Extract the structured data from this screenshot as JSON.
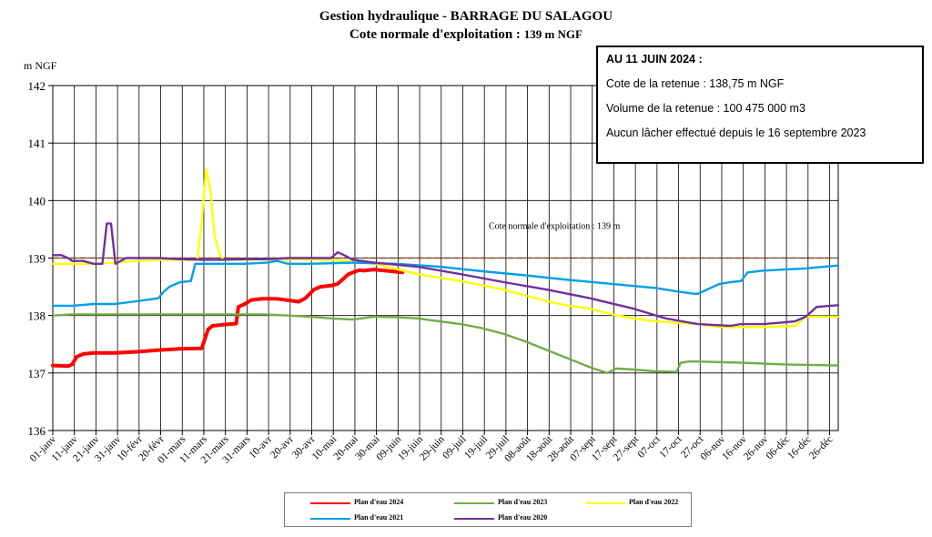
{
  "title_line1": "Gestion hydraulique - BARRAGE DU SALAGOU",
  "title_line2_main": "Cote normale d'exploitation : ",
  "title_line2_value": "139 m NGF",
  "info": {
    "heading": "AU 11 JUIN 2024 :",
    "lines": [
      "Cote de la retenue : 138,75 m NGF",
      "Volume de la retenue : 100 475 000 m3",
      "Aucun lâcher effectué depuis le 16 septembre 2023"
    ]
  },
  "colors": {
    "s2024": "#ff0000",
    "s2023": "#70ad47",
    "s2022": "#ffff00",
    "s2021": "#00a0e9",
    "s2020": "#7030a0",
    "reference": "#8b4513"
  },
  "chart_data": {
    "type": "line",
    "title": "Gestion hydraulique - BARRAGE DU SALAGOU",
    "subtitle": "Cote normale d'exploitation : 139 m NGF",
    "ylabel": "m NGF",
    "xlabel": "",
    "ylim": [
      136,
      142
    ],
    "yticks": [
      136,
      137,
      138,
      139,
      140,
      141,
      142
    ],
    "xlim": [
      1,
      365
    ],
    "xtick_labels": [
      "01-janv",
      "11-janv",
      "21-janv",
      "31-janv",
      "10-févr",
      "20-févr",
      "01-mars",
      "11-mars",
      "21-mars",
      "31-mars",
      "10-avr",
      "20-avr",
      "30-avr",
      "10-mai",
      "20-mai",
      "30-mai",
      "09-juin",
      "19-juin",
      "29-juin",
      "09-juil",
      "19-juil",
      "29-juil",
      "08-août",
      "18-août",
      "28-août",
      "07-sept",
      "17-sept",
      "27-sept",
      "07-oct",
      "17-oct",
      "27-oct",
      "06-nov",
      "16-nov",
      "26-nov",
      "06-déc",
      "16-déc",
      "26-déc"
    ],
    "grid": true,
    "reference_line": {
      "value": 139,
      "label": "Cote normale d'exploitation : 139 m"
    },
    "legend_position": "bottom",
    "series": [
      {
        "name": "Plan d'eau 2024",
        "color_key": "s2024",
        "x": [
          1,
          8,
          10,
          12,
          15,
          20,
          30,
          40,
          50,
          60,
          70,
          73,
          75,
          80,
          86,
          87,
          90,
          93,
          98,
          105,
          115,
          118,
          122,
          125,
          130,
          133,
          138,
          143,
          145,
          150,
          155,
          163
        ],
        "y": [
          137.13,
          137.12,
          137.15,
          137.28,
          137.33,
          137.35,
          137.35,
          137.37,
          137.4,
          137.42,
          137.43,
          137.76,
          137.82,
          137.84,
          137.86,
          138.15,
          138.2,
          138.27,
          138.29,
          138.29,
          138.24,
          138.3,
          138.45,
          138.5,
          138.52,
          138.55,
          138.72,
          138.79,
          138.78,
          138.8,
          138.78,
          138.75
        ]
      },
      {
        "name": "Plan d'eau 2023",
        "color_key": "s2023",
        "x": [
          1,
          10,
          30,
          50,
          70,
          90,
          100,
          110,
          120,
          130,
          140,
          150,
          160,
          170,
          180,
          190,
          200,
          210,
          220,
          230,
          240,
          250,
          258,
          262,
          270,
          280,
          290,
          292,
          296,
          300,
          320,
          340,
          365
        ],
        "y": [
          138.0,
          138.02,
          138.02,
          138.02,
          138.02,
          138.02,
          138.02,
          138.0,
          137.98,
          137.95,
          137.93,
          137.98,
          137.97,
          137.95,
          137.9,
          137.85,
          137.78,
          137.68,
          137.55,
          137.4,
          137.25,
          137.1,
          137.0,
          137.08,
          137.06,
          137.03,
          137.02,
          137.18,
          137.2,
          137.2,
          137.18,
          137.15,
          137.13
        ]
      },
      {
        "name": "Plan d'eau 2022",
        "color_key": "s2022",
        "x": [
          1,
          10,
          20,
          30,
          40,
          50,
          60,
          68,
          70,
          72,
          74,
          76,
          78,
          80,
          90,
          110,
          130,
          150,
          170,
          190,
          210,
          230,
          240,
          250,
          260,
          270,
          280,
          300,
          310,
          330,
          345,
          350,
          365
        ],
        "y": [
          138.9,
          138.9,
          138.9,
          138.92,
          138.95,
          138.97,
          138.97,
          138.97,
          139.6,
          140.55,
          140.2,
          139.4,
          139.1,
          138.97,
          138.97,
          138.98,
          138.97,
          138.9,
          138.72,
          138.6,
          138.45,
          138.25,
          138.17,
          138.12,
          138.02,
          137.95,
          137.9,
          137.85,
          137.8,
          137.8,
          137.82,
          137.98,
          137.98
        ]
      },
      {
        "name": "Plan d'eau 2021",
        "color_key": "s2021",
        "x": [
          1,
          10,
          20,
          30,
          40,
          50,
          52,
          55,
          60,
          65,
          67,
          70,
          80,
          90,
          100,
          105,
          108,
          110,
          120,
          140,
          160,
          180,
          200,
          220,
          240,
          260,
          280,
          290,
          298,
          300,
          310,
          315,
          320,
          323,
          330,
          340,
          350,
          365
        ],
        "y": [
          138.17,
          138.17,
          138.2,
          138.2,
          138.25,
          138.3,
          138.4,
          138.5,
          138.58,
          138.6,
          138.9,
          138.9,
          138.9,
          138.9,
          138.92,
          138.95,
          138.92,
          138.9,
          138.9,
          138.92,
          138.9,
          138.85,
          138.77,
          138.7,
          138.62,
          138.55,
          138.48,
          138.42,
          138.38,
          138.38,
          138.55,
          138.58,
          138.6,
          138.75,
          138.78,
          138.8,
          138.82,
          138.87
        ]
      },
      {
        "name": "Plan d'eau 2020",
        "color_key": "s2020",
        "x": [
          1,
          5,
          8,
          10,
          15,
          20,
          24,
          26,
          28,
          30,
          35,
          40,
          50,
          60,
          70,
          80,
          90,
          100,
          110,
          120,
          130,
          133,
          136,
          140,
          150,
          170,
          190,
          210,
          230,
          250,
          270,
          285,
          300,
          315,
          320,
          330,
          340,
          345,
          350,
          355,
          365
        ],
        "y": [
          139.05,
          139.05,
          139.0,
          138.95,
          138.95,
          138.9,
          138.9,
          139.6,
          139.6,
          138.9,
          139.0,
          139.0,
          139.0,
          138.98,
          138.97,
          138.97,
          138.98,
          138.98,
          139.0,
          139.0,
          139.0,
          139.1,
          139.05,
          138.97,
          138.92,
          138.85,
          138.72,
          138.58,
          138.45,
          138.3,
          138.12,
          137.95,
          137.85,
          137.82,
          137.85,
          137.85,
          137.88,
          137.9,
          137.98,
          138.15,
          138.18
        ]
      }
    ]
  }
}
